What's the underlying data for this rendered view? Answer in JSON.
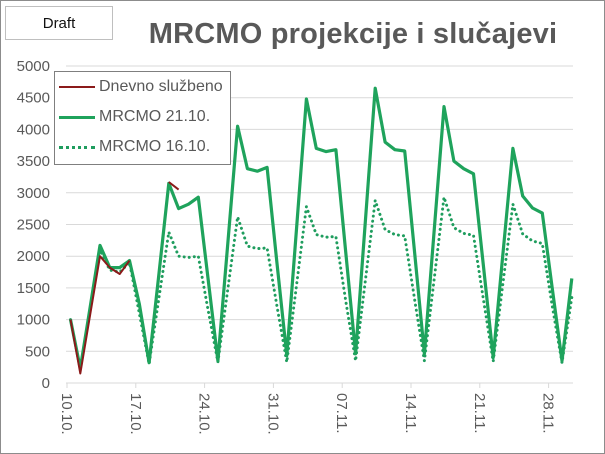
{
  "badge": {
    "label": "Draft"
  },
  "chart_data": {
    "type": "line",
    "title": "MRCMO projekcije i slučajevi",
    "xlabel": "",
    "ylabel": "",
    "ylim": [
      0,
      5000
    ],
    "yticks": [
      0,
      500,
      1000,
      1500,
      2000,
      2500,
      3000,
      3500,
      4000,
      4500,
      5000
    ],
    "xtick_labels": [
      "10.10.",
      "17.10.",
      "24.10.",
      "31.10.",
      "07.11.",
      "14.11.",
      "21.11.",
      "28.11."
    ],
    "grid": "horizontal",
    "legend_position": "top-left",
    "x_start": "10.10.",
    "x_unit": "day",
    "series": [
      {
        "name": "Dnevno službeno",
        "color": "#8b1a1a",
        "style": "solid-thin",
        "values": [
          1000,
          150,
          1080,
          2000,
          1820,
          1720,
          1930,
          null,
          null,
          null,
          3170,
          3050
        ]
      },
      {
        "name": "MRCMO 21.10.",
        "color": "#1fa35c",
        "style": "solid",
        "values": [
          1000,
          230,
          1200,
          2170,
          1820,
          1820,
          1930,
          1250,
          320,
          1730,
          3150,
          2750,
          2820,
          2930,
          1640,
          350,
          2200,
          4050,
          3380,
          3340,
          3400,
          1900,
          430,
          2450,
          4480,
          3700,
          3650,
          3680,
          2070,
          460,
          2560,
          4650,
          3800,
          3680,
          3660,
          2060,
          460,
          2410,
          4360,
          3500,
          3380,
          3300,
          1850,
          400,
          2050,
          3700,
          2950,
          2760,
          2680,
          1500,
          350,
          1650
        ]
      },
      {
        "name": "MRCMO 16.10.",
        "color": "#1f9d5e",
        "style": "dotted",
        "values": [
          1000,
          230,
          1150,
          2100,
          1780,
          1750,
          1900,
          1100,
          300,
          1350,
          2380,
          2000,
          1980,
          2000,
          1150,
          330,
          1480,
          2620,
          2160,
          2120,
          2130,
          1220,
          330,
          1550,
          2780,
          2340,
          2300,
          2310,
          1300,
          350,
          1620,
          2880,
          2420,
          2340,
          2320,
          1320,
          350,
          1640,
          2930,
          2450,
          2360,
          2330,
          1320,
          340,
          1580,
          2820,
          2350,
          2240,
          2200,
          1220,
          320,
          1350
        ]
      }
    ]
  }
}
